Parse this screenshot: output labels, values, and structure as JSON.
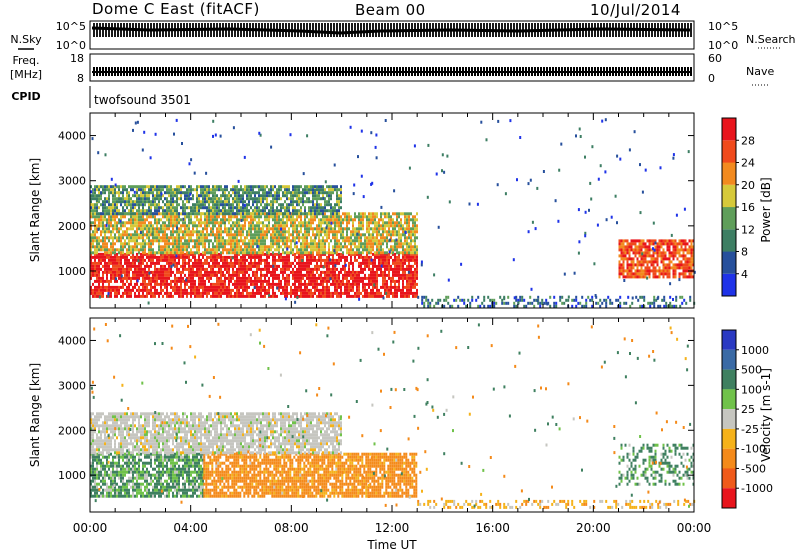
{
  "header": {
    "station": "Dome C East (fitACF)",
    "beam": "Beam 00",
    "date": "10/Jul/2014"
  },
  "top_panels": {
    "nsky_label": "N.Sky",
    "nsky_ticks": [
      "10^5",
      "10^0"
    ],
    "nsearch_label": "N.Search",
    "nsearch_ticks": [
      "10^5",
      "10^0"
    ],
    "freq_label": "Freq.",
    "freq_unit": "[MHz]",
    "freq_ticks": [
      "18",
      "8"
    ],
    "nave_label": "Nave",
    "nave_ticks": [
      "60",
      "0"
    ],
    "cpid_label": "CPID",
    "cpid_value": "twofsound 3501"
  },
  "chart_data": [
    {
      "type": "heatmap",
      "panel": "power",
      "xlabel": "",
      "ylabel": "Slant Range [km]",
      "xlim": [
        0,
        24
      ],
      "ylim": [
        180,
        4500
      ],
      "y_ticks": [
        "1000",
        "2000",
        "3000",
        "4000"
      ],
      "colorbar": {
        "label": "Power [dB]",
        "ticks": [
          "4",
          "8",
          "12",
          "16",
          "20",
          "24",
          "28"
        ],
        "range": [
          0,
          32
        ],
        "colors": [
          "#1f33e8",
          "#27509c",
          "#3d7e63",
          "#5f9e5a",
          "#d6c93a",
          "#f28a1f",
          "#f04a1c",
          "#e8141c"
        ]
      },
      "regions": [
        {
          "x0": 0.0,
          "x1": 13.0,
          "y0": 450,
          "y1": 1400,
          "value": 30
        },
        {
          "x0": 0.0,
          "x1": 13.0,
          "y0": 1400,
          "y1": 2300,
          "value": 18
        },
        {
          "x0": 0.0,
          "x1": 10.0,
          "y0": 2300,
          "y1": 2900,
          "value": 12
        },
        {
          "x0": 13.0,
          "x1": 24.0,
          "y0": 250,
          "y1": 450,
          "value": 8
        },
        {
          "x0": 21.0,
          "x1": 24.0,
          "y0": 900,
          "y1": 1700,
          "value": 26
        }
      ]
    },
    {
      "type": "heatmap",
      "panel": "velocity",
      "xlabel": "Time UT",
      "ylabel": "Slant Range [km]",
      "xlim": [
        0,
        24
      ],
      "ylim": [
        180,
        4500
      ],
      "x_ticks": [
        "00:00",
        "04:00",
        "08:00",
        "12:00",
        "16:00",
        "20:00",
        "00:00"
      ],
      "y_ticks": [
        "1000",
        "2000",
        "3000",
        "4000"
      ],
      "colorbar": {
        "label": "Velocity [m s-1]",
        "ticks": [
          "1000",
          "500",
          "100",
          "25",
          "-25",
          "-100",
          "-500",
          "-1000"
        ],
        "colors": [
          "#2a39c2",
          "#3a6aa5",
          "#3f8060",
          "#70c24a",
          "#c6c6c0",
          "#f5b21a",
          "#f48a1a",
          "#f05a1a",
          "#e8141c"
        ]
      },
      "regions": [
        {
          "x0": 0.0,
          "x1": 4.5,
          "y0": 500,
          "y1": 1500,
          "value": 120
        },
        {
          "x0": 4.5,
          "x1": 13.0,
          "y0": 500,
          "y1": 1500,
          "value": -250
        },
        {
          "x0": 0.0,
          "x1": 10.0,
          "y0": 1500,
          "y1": 2400,
          "value": 0
        },
        {
          "x0": 21.0,
          "x1": 24.0,
          "y0": 800,
          "y1": 1700,
          "value": 150
        },
        {
          "x0": 13.0,
          "x1": 24.0,
          "y0": 250,
          "y1": 450,
          "value": -60
        }
      ]
    }
  ]
}
